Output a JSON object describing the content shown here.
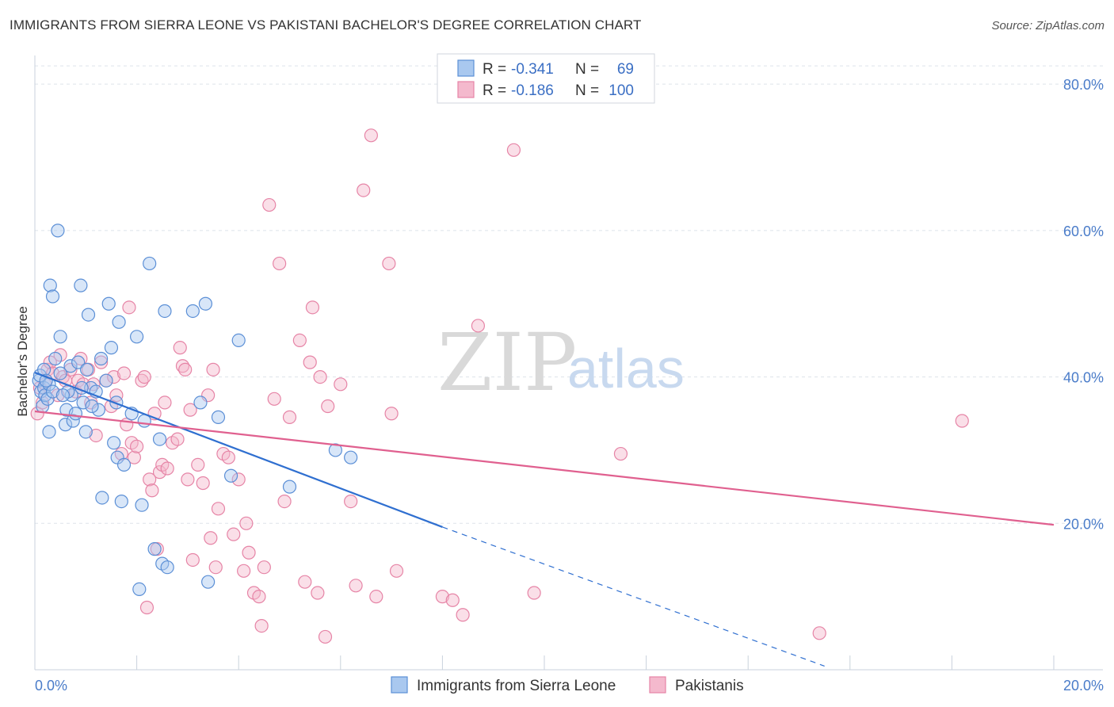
{
  "header": {
    "title": "IMMIGRANTS FROM SIERRA LEONE VS PAKISTANI BACHELOR'S DEGREE CORRELATION CHART",
    "source": "Source: ZipAtlas.com"
  },
  "watermark": {
    "zip": "ZIP",
    "atlas": "atlas"
  },
  "legend": {
    "rows": [
      {
        "r_label": "R =",
        "r_value": "-0.341",
        "n_label": "N =",
        "n_value": "69"
      },
      {
        "r_label": "R =",
        "r_value": "-0.186",
        "n_label": "N =",
        "n_value": "100"
      }
    ]
  },
  "colors": {
    "blue_fill": "#a9c8ef",
    "blue_stroke": "#5b8fd6",
    "blue_line": "#2f6fd0",
    "pink_fill": "#f4b9cd",
    "pink_stroke": "#e684a6",
    "pink_line": "#e0608f",
    "grid": "#dde3ea",
    "tick_text": "#4a7cc9"
  },
  "chart_data": {
    "type": "scatter",
    "title": "IMMIGRANTS FROM SIERRA LEONE VS PAKISTANI BACHELOR'S DEGREE CORRELATION CHART",
    "xlabel": "",
    "ylabel": "Bachelor's Degree",
    "xlim": [
      0,
      20
    ],
    "ylim": [
      0,
      85
    ],
    "x_ticks": [
      {
        "value": 0,
        "label": "0.0%"
      },
      {
        "value": 20,
        "label": "20.0%"
      }
    ],
    "y_ticks": [
      {
        "value": 20,
        "label": "20.0%"
      },
      {
        "value": 40,
        "label": "40.0%"
      },
      {
        "value": 60,
        "label": "60.0%"
      },
      {
        "value": 80,
        "label": "80.0%"
      }
    ],
    "grid": true,
    "legend_position": "top-center",
    "series": [
      {
        "name": "Immigrants from Sierra Leone",
        "color": "#5b8fd6",
        "trend": {
          "x0": 0,
          "y0": 40.6,
          "x1": 8,
          "y1": 19.5,
          "dashed_to_x": 15.5,
          "dashed_to_y": 0.5
        },
        "points": [
          [
            0.08,
            39.5
          ],
          [
            0.1,
            40.2
          ],
          [
            0.12,
            38.0
          ],
          [
            0.15,
            36.0
          ],
          [
            0.18,
            38.5
          ],
          [
            0.2,
            37.5
          ],
          [
            0.25,
            37.0
          ],
          [
            0.28,
            32.5
          ],
          [
            0.3,
            52.5
          ],
          [
            0.35,
            51.0
          ],
          [
            0.45,
            60.0
          ],
          [
            0.5,
            45.5
          ],
          [
            0.6,
            33.5
          ],
          [
            0.62,
            35.5
          ],
          [
            0.7,
            41.5
          ],
          [
            0.72,
            37.5
          ],
          [
            0.75,
            34.0
          ],
          [
            0.8,
            35.0
          ],
          [
            0.85,
            42.0
          ],
          [
            0.9,
            52.5
          ],
          [
            0.95,
            36.5
          ],
          [
            1.0,
            32.5
          ],
          [
            1.05,
            48.5
          ],
          [
            1.1,
            38.5
          ],
          [
            1.2,
            38.0
          ],
          [
            1.25,
            35.5
          ],
          [
            1.3,
            42.5
          ],
          [
            1.32,
            23.5
          ],
          [
            1.4,
            39.5
          ],
          [
            1.45,
            50.0
          ],
          [
            1.5,
            44.0
          ],
          [
            1.55,
            31.0
          ],
          [
            1.6,
            36.5
          ],
          [
            1.62,
            29.0
          ],
          [
            1.65,
            47.5
          ],
          [
            1.7,
            23.0
          ],
          [
            1.75,
            28.0
          ],
          [
            1.9,
            35.0
          ],
          [
            2.0,
            45.5
          ],
          [
            2.05,
            11.0
          ],
          [
            2.1,
            22.5
          ],
          [
            2.15,
            34.0
          ],
          [
            2.25,
            55.5
          ],
          [
            2.35,
            16.5
          ],
          [
            2.45,
            31.5
          ],
          [
            2.5,
            14.5
          ],
          [
            2.6,
            14.0
          ],
          [
            2.55,
            49.0
          ],
          [
            3.1,
            49.0
          ],
          [
            3.25,
            36.5
          ],
          [
            3.35,
            50.0
          ],
          [
            3.4,
            12.0
          ],
          [
            3.6,
            34.5
          ],
          [
            3.85,
            26.5
          ],
          [
            4.0,
            45.0
          ],
          [
            5.0,
            25.0
          ],
          [
            5.9,
            30.0
          ],
          [
            6.2,
            29.0
          ],
          [
            0.18,
            41.0
          ],
          [
            0.28,
            39.0
          ],
          [
            0.22,
            39.5
          ],
          [
            0.35,
            38.0
          ],
          [
            0.5,
            40.5
          ],
          [
            0.92,
            38.5
          ],
          [
            1.02,
            41.0
          ],
          [
            1.12,
            36.0
          ],
          [
            0.4,
            42.5
          ],
          [
            0.65,
            38.0
          ],
          [
            0.55,
            37.5
          ]
        ]
      },
      {
        "name": "Pakistanis",
        "color": "#e684a6",
        "trend": {
          "x0": 0,
          "y0": 35.3,
          "x1": 20,
          "y1": 19.8
        },
        "points": [
          [
            0.05,
            35.0
          ],
          [
            0.1,
            38.5
          ],
          [
            0.15,
            36.5
          ],
          [
            0.2,
            39.0
          ],
          [
            0.25,
            41.0
          ],
          [
            0.3,
            42.0
          ],
          [
            0.35,
            40.5
          ],
          [
            0.45,
            37.5
          ],
          [
            0.5,
            43.0
          ],
          [
            0.55,
            40.0
          ],
          [
            0.6,
            39.5
          ],
          [
            0.7,
            41.0
          ],
          [
            0.8,
            38.0
          ],
          [
            0.85,
            39.5
          ],
          [
            0.9,
            42.5
          ],
          [
            0.95,
            39.0
          ],
          [
            1.05,
            41.0
          ],
          [
            1.1,
            36.5
          ],
          [
            1.15,
            39.0
          ],
          [
            1.2,
            32.0
          ],
          [
            1.3,
            42.0
          ],
          [
            1.4,
            39.5
          ],
          [
            1.5,
            36.0
          ],
          [
            1.55,
            40.0
          ],
          [
            1.6,
            37.5
          ],
          [
            1.7,
            29.5
          ],
          [
            1.75,
            40.5
          ],
          [
            1.8,
            33.5
          ],
          [
            1.85,
            49.5
          ],
          [
            1.9,
            31.0
          ],
          [
            1.95,
            29.0
          ],
          [
            2.0,
            30.5
          ],
          [
            2.1,
            39.5
          ],
          [
            2.15,
            40.0
          ],
          [
            2.2,
            8.5
          ],
          [
            2.25,
            26.0
          ],
          [
            2.3,
            24.5
          ],
          [
            2.35,
            35.0
          ],
          [
            2.4,
            16.5
          ],
          [
            2.45,
            27.0
          ],
          [
            2.5,
            28.0
          ],
          [
            2.55,
            36.5
          ],
          [
            2.6,
            27.5
          ],
          [
            2.7,
            31.0
          ],
          [
            2.8,
            31.5
          ],
          [
            2.85,
            44.0
          ],
          [
            2.9,
            41.5
          ],
          [
            2.95,
            41.0
          ],
          [
            3.0,
            26.0
          ],
          [
            3.05,
            35.5
          ],
          [
            3.1,
            15.0
          ],
          [
            3.2,
            28.0
          ],
          [
            3.3,
            25.5
          ],
          [
            3.4,
            37.5
          ],
          [
            3.45,
            18.0
          ],
          [
            3.5,
            41.0
          ],
          [
            3.55,
            14.0
          ],
          [
            3.6,
            22.0
          ],
          [
            3.7,
            29.5
          ],
          [
            3.8,
            29.0
          ],
          [
            3.9,
            18.5
          ],
          [
            4.0,
            26.0
          ],
          [
            4.1,
            13.5
          ],
          [
            4.15,
            20.0
          ],
          [
            4.2,
            16.0
          ],
          [
            4.3,
            10.5
          ],
          [
            4.4,
            10.0
          ],
          [
            4.45,
            6.0
          ],
          [
            4.5,
            14.0
          ],
          [
            4.6,
            63.5
          ],
          [
            4.7,
            37.0
          ],
          [
            4.8,
            55.5
          ],
          [
            4.9,
            23.0
          ],
          [
            5.0,
            34.5
          ],
          [
            5.2,
            45.0
          ],
          [
            5.3,
            12.0
          ],
          [
            5.4,
            42.0
          ],
          [
            5.45,
            49.5
          ],
          [
            5.55,
            10.5
          ],
          [
            5.6,
            40.0
          ],
          [
            5.7,
            4.5
          ],
          [
            5.75,
            36.0
          ],
          [
            6.0,
            39.0
          ],
          [
            6.2,
            23.0
          ],
          [
            6.3,
            11.5
          ],
          [
            6.45,
            65.5
          ],
          [
            6.6,
            73.0
          ],
          [
            6.7,
            10.0
          ],
          [
            6.95,
            55.5
          ],
          [
            7.0,
            35.0
          ],
          [
            7.1,
            13.5
          ],
          [
            8.0,
            10.0
          ],
          [
            8.2,
            9.5
          ],
          [
            8.4,
            7.5
          ],
          [
            8.7,
            47.0
          ],
          [
            9.4,
            71.0
          ],
          [
            9.8,
            10.5
          ],
          [
            11.5,
            29.5
          ],
          [
            15.4,
            5.0
          ],
          [
            18.2,
            34.0
          ]
        ]
      }
    ]
  },
  "bottom_legend": {
    "items": [
      {
        "label": "Immigrants from Sierra Leone"
      },
      {
        "label": "Pakistanis"
      }
    ]
  }
}
